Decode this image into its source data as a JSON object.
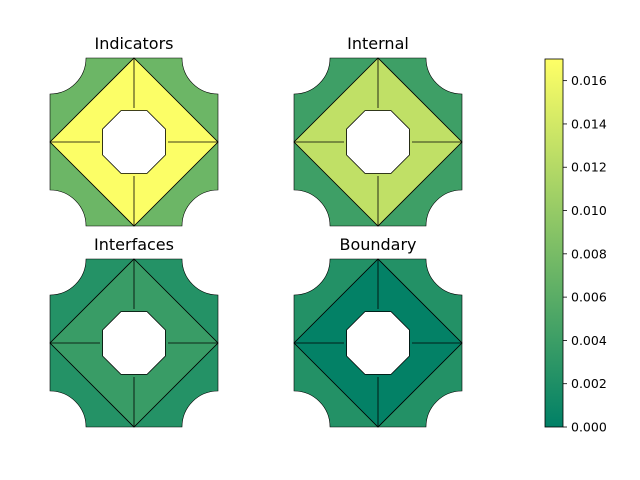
{
  "chart_data": [
    {
      "type": "heatmap",
      "title": "Indicators",
      "values": {
        "outer": 0.0072,
        "diamond": 0.0168
      }
    },
    {
      "type": "heatmap",
      "title": "Internal",
      "values": {
        "outer": 0.0041,
        "diamond": 0.0128
      }
    },
    {
      "type": "heatmap",
      "title": "Interfaces",
      "values": {
        "outer": 0.0024,
        "diamond": 0.0038
      }
    },
    {
      "type": "heatmap",
      "title": "Boundary",
      "values": {
        "outer": 0.0023,
        "diamond": 0.0002
      }
    }
  ],
  "colorbar": {
    "colormap": "summer",
    "range": [
      0.0,
      0.017
    ],
    "ticks": [
      "0.000",
      "0.002",
      "0.004",
      "0.006",
      "0.008",
      "0.010",
      "0.012",
      "0.014",
      "0.016"
    ],
    "colors": {
      "low": "#008066",
      "high": "#ffff66"
    }
  }
}
